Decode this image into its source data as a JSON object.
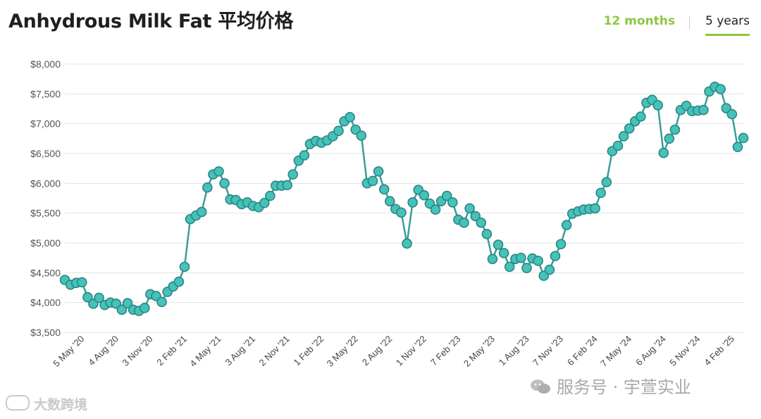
{
  "header": {
    "title": "Anhydrous Milk Fat 平均价格",
    "tabs": [
      {
        "label": "12 months",
        "active": false
      },
      {
        "label": "5 years",
        "active": true
      }
    ]
  },
  "watermarks": {
    "left": "大数跨境",
    "right": "服务号 · 宇萱实业"
  },
  "colors": {
    "line": "#3a9d99",
    "marker_fill": "#45c2b9",
    "marker_stroke": "#2c8581",
    "accent": "#8cc63f",
    "grid": "#e3e3e3"
  },
  "chart_data": {
    "type": "line",
    "title": "Anhydrous Milk Fat 平均价格",
    "xlabel": "",
    "ylabel": "",
    "ylim": [
      3500,
      8000
    ],
    "yticks": [
      3500,
      4000,
      4500,
      5000,
      5500,
      6000,
      6500,
      7000,
      7500,
      8000
    ],
    "ytick_labels": [
      "$3,500",
      "$4,000",
      "$4,500",
      "$5,000",
      "$5,500",
      "$6,000",
      "$6,500",
      "$7,000",
      "$7,500",
      "$8,000"
    ],
    "xtick_labels": [
      "5 May '20",
      "4 Aug '20",
      "3 Nov '20",
      "2 Feb '21",
      "4 May '21",
      "3 Aug '21",
      "2 Nov '21",
      "1 Feb '22",
      "3 May '22",
      "2 Aug '22",
      "1 Nov '22",
      "7 Feb '23",
      "2 May '23",
      "1 Aug '23",
      "7 Nov '23",
      "6 Feb '24",
      "7 May '24",
      "6 Aug '24",
      "5 Nov '24",
      "4 Feb '25"
    ],
    "xtick_index": [
      3,
      9,
      15,
      21,
      27,
      33,
      39,
      45,
      51,
      57,
      63,
      69,
      75,
      81,
      87,
      93,
      99,
      105,
      111,
      117
    ],
    "grid": true,
    "legend": "none",
    "series": [
      {
        "values": [
          4380,
          4300,
          4330,
          4340,
          4090,
          3980,
          4080,
          3960,
          4000,
          3980,
          3880,
          3990,
          3880,
          3860,
          3910,
          4140,
          4110,
          4010,
          4180,
          4270,
          4350,
          4600,
          5400,
          5460,
          5520,
          5930,
          6150,
          6200,
          6000,
          5730,
          5720,
          5650,
          5680,
          5620,
          5600,
          5670,
          5790,
          5960,
          5960,
          5970,
          6150,
          6380,
          6470,
          6660,
          6710,
          6680,
          6720,
          6790,
          6880,
          7040,
          7110,
          6900,
          6800,
          6000,
          6040,
          6200,
          5900,
          5700,
          5570,
          5510,
          4990,
          5680,
          5890,
          5800,
          5660,
          5560,
          5700,
          5790,
          5680,
          5390,
          5340,
          5580,
          5450,
          5340,
          5150,
          4730,
          4970,
          4830,
          4600,
          4730,
          4750,
          4580,
          4740,
          4700,
          4450,
          4550,
          4780,
          4980,
          5300,
          5490,
          5530,
          5560,
          5570,
          5580,
          5840,
          6020,
          6540,
          6630,
          6790,
          6920,
          7040,
          7120,
          7350,
          7400,
          7310,
          6510,
          6750,
          6900,
          7230,
          7300,
          7210,
          7220,
          7230,
          7540,
          7620,
          7580,
          7260,
          7160,
          6610,
          6760
        ]
      }
    ]
  }
}
